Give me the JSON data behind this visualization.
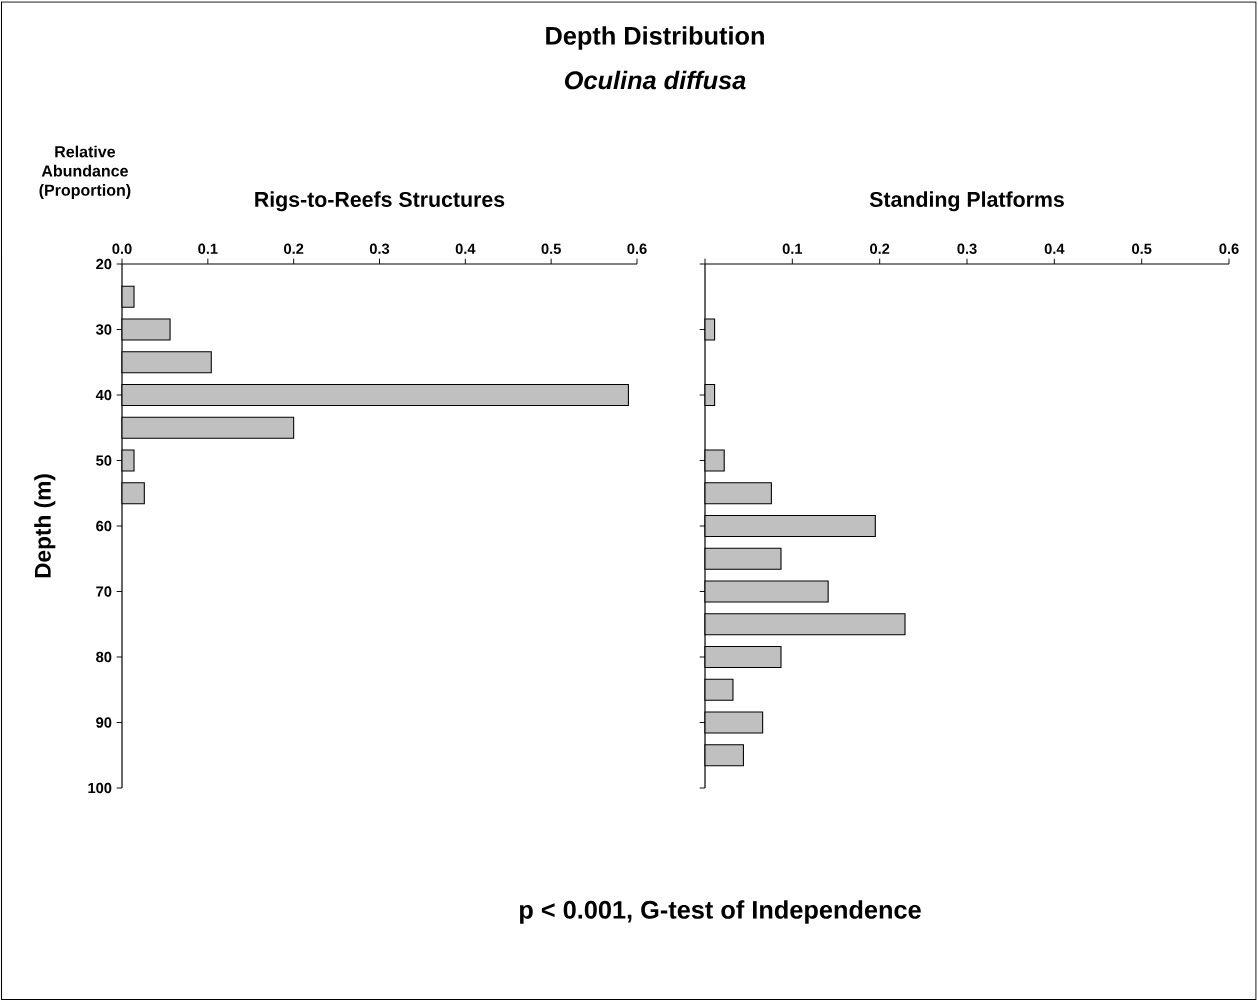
{
  "chart_data": [
    {
      "type": "other",
      "title": "Depth Distribution",
      "subtitle": "Oculina diffusa",
      "annotations": [
        "p < 0.001, G-test of Independence"
      ]
    },
    {
      "type": "bar",
      "orientation": "horizontal",
      "title": "Rigs-to-Reefs Structures",
      "xlabel": "Relative Abundance (Proportion)",
      "ylabel": "Depth (m)",
      "x": [
        25,
        30,
        35,
        40,
        45,
        50,
        55
      ],
      "values": [
        0.014,
        0.056,
        0.104,
        0.59,
        0.2,
        0.014,
        0.026
      ],
      "color": "#c0c0c0",
      "xlim": [
        0,
        0.6
      ],
      "xticks": [
        {
          "value": 0,
          "label": "0.0"
        },
        0.1,
        0.2,
        0.3,
        0.4,
        0.5,
        0.6
      ],
      "ylim": [
        100,
        20
      ],
      "yticks": [
        20,
        30,
        40,
        50,
        60,
        70,
        80,
        90,
        100
      ]
    },
    {
      "type": "bar",
      "orientation": "horizontal",
      "title": "Standing Platforms",
      "x": [
        30,
        40,
        50,
        55,
        60,
        65,
        70,
        75,
        80,
        85,
        90,
        95
      ],
      "values": [
        0.011,
        0.011,
        0.022,
        0.076,
        0.195,
        0.087,
        0.141,
        0.229,
        0.087,
        0.032,
        0.066,
        0.044
      ],
      "color": "#c0c0c0",
      "xlim": [
        0,
        0.6
      ],
      "xticks": [
        {
          "value": 0,
          "label": null
        },
        0.1,
        0.2,
        0.3,
        0.4,
        0.5,
        0.6
      ],
      "ylim": [
        100,
        20
      ],
      "yticks": [
        {
          "value": 20,
          "label": null
        },
        {
          "value": 30,
          "label": null
        },
        {
          "value": 40,
          "label": null
        },
        {
          "value": 50,
          "label": null
        },
        {
          "value": 60,
          "label": null
        },
        {
          "value": 70,
          "label": null
        },
        {
          "value": 80,
          "label": null
        },
        {
          "value": 90,
          "label": null
        },
        {
          "value": 100,
          "label": null
        }
      ],
      "tick_labels": "x"
    }
  ]
}
